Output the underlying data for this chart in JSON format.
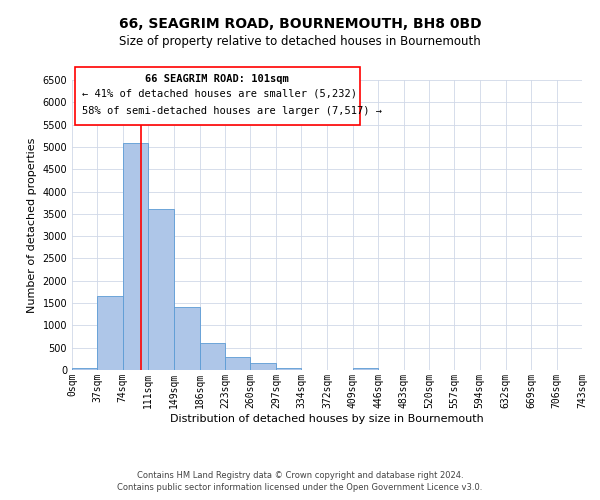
{
  "title": "66, SEAGRIM ROAD, BOURNEMOUTH, BH8 0BD",
  "subtitle": "Size of property relative to detached houses in Bournemouth",
  "xlabel": "Distribution of detached houses by size in Bournemouth",
  "ylabel": "Number of detached properties",
  "bar_edges": [
    0,
    37,
    74,
    111,
    149,
    186,
    223,
    260,
    297,
    334,
    372,
    409,
    446,
    483,
    520,
    557,
    594,
    632,
    669,
    706,
    743
  ],
  "bar_heights": [
    50,
    1650,
    5080,
    3600,
    1420,
    610,
    300,
    150,
    50,
    0,
    0,
    50,
    0,
    0,
    0,
    0,
    0,
    0,
    0,
    0
  ],
  "bar_color": "#aec6e8",
  "bar_edgecolor": "#5b9bd5",
  "property_line_x": 101,
  "ylim": [
    0,
    6500
  ],
  "yticks": [
    0,
    500,
    1000,
    1500,
    2000,
    2500,
    3000,
    3500,
    4000,
    4500,
    5000,
    5500,
    6000,
    6500
  ],
  "xtick_labels": [
    "0sqm",
    "37sqm",
    "74sqm",
    "111sqm",
    "149sqm",
    "186sqm",
    "223sqm",
    "260sqm",
    "297sqm",
    "334sqm",
    "372sqm",
    "409sqm",
    "446sqm",
    "483sqm",
    "520sqm",
    "557sqm",
    "594sqm",
    "632sqm",
    "669sqm",
    "706sqm",
    "743sqm"
  ],
  "annotation_title": "66 SEAGRIM ROAD: 101sqm",
  "annotation_line1": "← 41% of detached houses are smaller (5,232)",
  "annotation_line2": "58% of semi-detached houses are larger (7,517) →",
  "footer1": "Contains HM Land Registry data © Crown copyright and database right 2024.",
  "footer2": "Contains public sector information licensed under the Open Government Licence v3.0.",
  "bg_color": "#ffffff",
  "grid_color": "#d0d8e8",
  "title_fontsize": 10,
  "subtitle_fontsize": 8.5,
  "axis_label_fontsize": 8,
  "tick_fontsize": 7,
  "annotation_fontsize": 7.5,
  "footer_fontsize": 6
}
